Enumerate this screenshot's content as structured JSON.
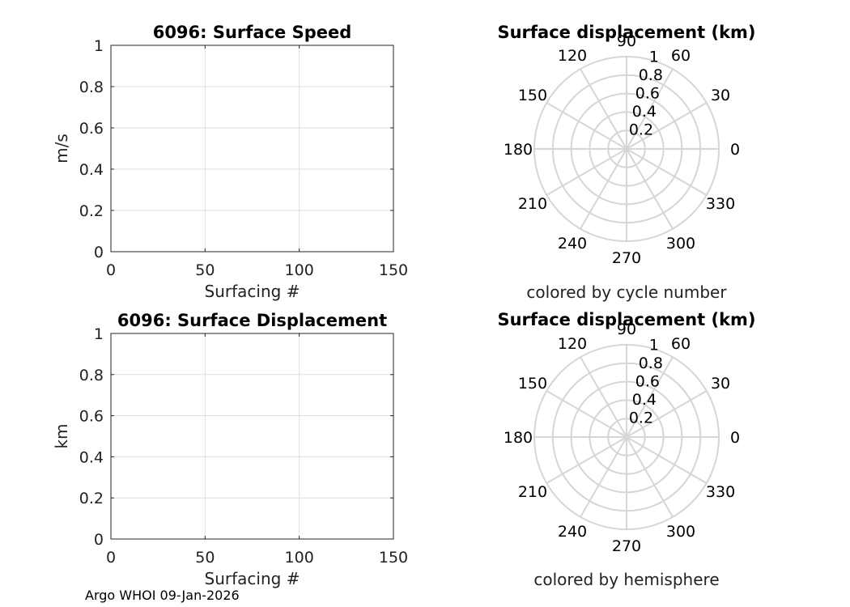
{
  "figure": {
    "footer": "Argo WHOI 09-Jan-2026"
  },
  "chart_data": [
    {
      "type": "line",
      "id": "speed",
      "title": "6096: Surface Speed",
      "xlabel": "Surfacing #",
      "ylabel": "m/s",
      "xlim": [
        0,
        150
      ],
      "ylim": [
        0,
        1
      ],
      "xticks": [
        0,
        50,
        100,
        150
      ],
      "yticks": [
        0,
        0.2,
        0.4,
        0.6,
        0.8,
        1
      ],
      "xtick_labels": [
        "0",
        "50",
        "100",
        "150"
      ],
      "ytick_labels": [
        "0",
        "0.2",
        "0.4",
        "0.6",
        "0.8",
        "1"
      ],
      "grid": true,
      "series": []
    },
    {
      "type": "line",
      "id": "displacement",
      "title": "6096: Surface Displacement",
      "xlabel": "Surfacing #",
      "ylabel": "km",
      "xlim": [
        0,
        150
      ],
      "ylim": [
        0,
        1
      ],
      "xticks": [
        0,
        50,
        100,
        150
      ],
      "yticks": [
        0,
        0.2,
        0.4,
        0.6,
        0.8,
        1
      ],
      "xtick_labels": [
        "0",
        "50",
        "100",
        "150"
      ],
      "ytick_labels": [
        "0",
        "0.2",
        "0.4",
        "0.6",
        "0.8",
        "1"
      ],
      "grid": true,
      "series": []
    },
    {
      "type": "polar",
      "id": "polar-cycle",
      "title": "Surface displacement (km)",
      "caption": "colored by cycle number",
      "rlim": [
        0,
        1
      ],
      "rticks": [
        0.2,
        0.4,
        0.6,
        0.8,
        1
      ],
      "rtick_labels": [
        "0.2",
        "0.4",
        "0.6",
        "0.8",
        "1"
      ],
      "theta_ticks": [
        0,
        30,
        60,
        90,
        120,
        150,
        180,
        210,
        240,
        270,
        300,
        330
      ],
      "theta_labels": [
        "0",
        "30",
        "60",
        "90",
        "120",
        "150",
        "180",
        "210",
        "240",
        "270",
        "300",
        "330"
      ],
      "series": []
    },
    {
      "type": "polar",
      "id": "polar-hemisphere",
      "title": "Surface displacement (km)",
      "caption": "colored by hemisphere",
      "rlim": [
        0,
        1
      ],
      "rticks": [
        0.2,
        0.4,
        0.6,
        0.8,
        1
      ],
      "rtick_labels": [
        "0.2",
        "0.4",
        "0.6",
        "0.8",
        "1"
      ],
      "theta_ticks": [
        0,
        30,
        60,
        90,
        120,
        150,
        180,
        210,
        240,
        270,
        300,
        330
      ],
      "theta_labels": [
        "0",
        "30",
        "60",
        "90",
        "120",
        "150",
        "180",
        "210",
        "240",
        "270",
        "300",
        "330"
      ],
      "series": []
    }
  ]
}
